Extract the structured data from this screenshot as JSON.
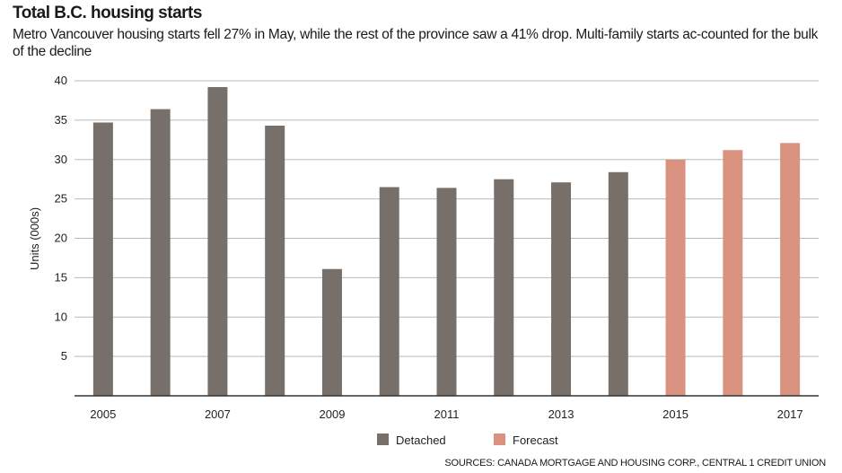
{
  "title": "Total B.C. housing starts",
  "subtitle": "Metro Vancouver housing starts fell 27% in May, while the rest of the province saw a 41% drop. Multi-family starts ac-counted for the bulk of the decline",
  "source": "SOURCES: CANADA MORTGAGE AND HOUSING CORP., CENTRAL 1 CREDIT UNION",
  "colors": {
    "detached": "#77706a",
    "forecast": "#d8927f",
    "grid": "#b9b9b9",
    "axis": "#333333"
  },
  "chart_data": {
    "type": "bar",
    "title": "Total B.C. housing starts",
    "ylabel": "Units (000s)",
    "xlabel": "",
    "ylim": [
      0,
      40
    ],
    "yticks": [
      5,
      10,
      15,
      20,
      25,
      30,
      35,
      40
    ],
    "x_tick_labels": [
      "2005",
      "2007",
      "2009",
      "2011",
      "2013",
      "2015",
      "2017"
    ],
    "grid": true,
    "legend_position": "bottom-center",
    "categories": [
      "2005",
      "2006",
      "2007",
      "2008",
      "2009",
      "2010",
      "2011",
      "2012",
      "2013",
      "2014",
      "2015",
      "2016",
      "2017"
    ],
    "series": [
      {
        "name": "Detached",
        "values": [
          34.7,
          36.4,
          39.2,
          34.3,
          16.1,
          26.5,
          26.4,
          27.5,
          27.1,
          28.4,
          null,
          null,
          null
        ]
      },
      {
        "name": "Forecast",
        "values": [
          null,
          null,
          null,
          null,
          null,
          null,
          null,
          null,
          null,
          null,
          30.0,
          31.2,
          32.1
        ]
      }
    ]
  }
}
